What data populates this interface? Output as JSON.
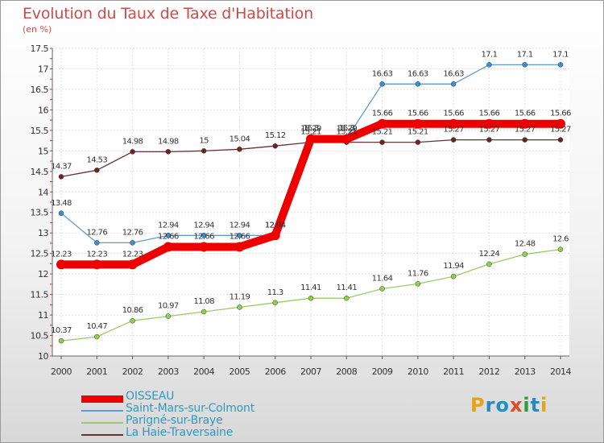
{
  "title": "Evolution du Taux de Taxe d'Habitation",
  "unit": "(en %)",
  "brand": "Proxiti",
  "brand_colors": [
    "#e6a317",
    "#2e86c1",
    "#1e90c8",
    "#e04a2a",
    "#2a9d3c",
    "#2e86c1",
    "#e6a317"
  ],
  "chart_data": {
    "type": "line",
    "title": "Evolution du Taux de Taxe d'Habitation",
    "xlabel": "",
    "ylabel": "(en %)",
    "ylim": [
      10,
      17.5
    ],
    "grid": true,
    "legend_position": "bottom-left",
    "x": [
      "2000",
      "2001",
      "2002",
      "2003",
      "2004",
      "2005",
      "2006",
      "2007",
      "2008",
      "2009",
      "2010",
      "2011",
      "2012",
      "2013",
      "2014"
    ],
    "y_ticks": [
      "10",
      "10.5",
      "11",
      "11.5",
      "12",
      "12.5",
      "13",
      "13.5",
      "14",
      "14.5",
      "15",
      "15.5",
      "16",
      "16.5",
      "17",
      "17.5"
    ],
    "series": [
      {
        "name": "OISSEAU",
        "color": "#ee0000",
        "values": [
          12.23,
          12.23,
          12.23,
          12.66,
          12.66,
          12.66,
          12.94,
          15.29,
          15.29,
          15.66,
          15.66,
          15.66,
          15.66,
          15.66,
          15.66
        ],
        "labels": [
          "12.23",
          "12.23",
          "12.23",
          "12.66",
          "12.66",
          "12.66",
          "12.94",
          "15.29",
          "15.29",
          "15.66",
          "15.66",
          "15.66",
          "15.66",
          "15.66",
          "15.66"
        ]
      },
      {
        "name": "Saint-Mars-sur-Colmont",
        "color": "#6699cc",
        "values": [
          13.48,
          12.76,
          12.76,
          12.94,
          12.94,
          12.94,
          12.94,
          15.3,
          15.3,
          16.63,
          16.63,
          16.63,
          17.1,
          17.1,
          17.1
        ],
        "labels": [
          "13.48",
          "12.76",
          "12.76",
          "12.94",
          "12.94",
          "12.94",
          "12.94",
          "15.3",
          "15.3",
          "16.63",
          "16.63",
          "16.63",
          "17.1",
          "17.1",
          "17.1"
        ]
      },
      {
        "name": "Parigné-sur-Braye",
        "color": "#99cc66",
        "values": [
          10.37,
          10.47,
          10.86,
          10.97,
          11.08,
          11.19,
          11.3,
          11.41,
          11.41,
          11.64,
          11.76,
          11.94,
          12.24,
          12.48,
          12.6
        ],
        "labels": [
          "10.37",
          "10.47",
          "10.86",
          "10.97",
          "11.08",
          "11.19",
          "11.3",
          "11.41",
          "11.41",
          "11.64",
          "11.76",
          "11.94",
          "12.24",
          "12.48",
          "12.6"
        ]
      },
      {
        "name": "La Haie-Traversaine",
        "color": "#663333",
        "values": [
          14.37,
          14.53,
          14.98,
          14.98,
          15,
          15.04,
          15.12,
          15.21,
          15.21,
          15.21,
          15.21,
          15.27,
          15.27,
          15.27,
          15.27
        ],
        "labels": [
          "14.37",
          "14.53",
          "14.98",
          "14.98",
          "15",
          "15.04",
          "15.12",
          "15.21",
          "15.21",
          "15.21",
          "15.21",
          "15.27",
          "15.27",
          "15.27",
          "15.27"
        ]
      }
    ]
  }
}
